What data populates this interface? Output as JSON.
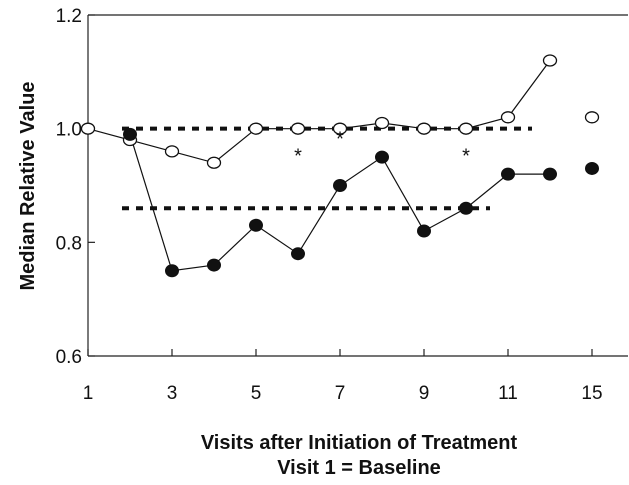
{
  "chart_data": {
    "type": "line",
    "title": "",
    "xlabel": "Visits after Initiation of Treatment",
    "xlabel_line2": "Visit 1 = Baseline",
    "ylabel": "Median Relative Value",
    "ylim": [
      0.6,
      1.2
    ],
    "yticks": [
      "0.6",
      "0.8",
      "1.0",
      "1.2"
    ],
    "xticks": [
      "1",
      "3",
      "5",
      "7",
      "9",
      "11",
      "15"
    ],
    "grid": false,
    "legend": "none",
    "series": [
      {
        "marker": "open-circle",
        "color": "#111111",
        "points": [
          {
            "visit": 1,
            "value": 1.0
          },
          {
            "visit": 2,
            "value": 0.98
          },
          {
            "visit": 3,
            "value": 0.96
          },
          {
            "visit": 4,
            "value": 0.94
          },
          {
            "visit": 5,
            "value": 1.0
          },
          {
            "visit": 6,
            "value": 1.0
          },
          {
            "visit": 7,
            "value": 1.0
          },
          {
            "visit": 8,
            "value": 1.01
          },
          {
            "visit": 9,
            "value": 1.0
          },
          {
            "visit": 10,
            "value": 1.0
          },
          {
            "visit": 11,
            "value": 1.02
          },
          {
            "visit": 12,
            "value": 1.12
          },
          {
            "visit": 15,
            "value": 1.02,
            "connected": false
          }
        ]
      },
      {
        "marker": "filled-circle",
        "color": "#111111",
        "points": [
          {
            "visit": 2,
            "value": 0.99
          },
          {
            "visit": 3,
            "value": 0.75
          },
          {
            "visit": 4,
            "value": 0.76
          },
          {
            "visit": 5,
            "value": 0.83
          },
          {
            "visit": 6,
            "value": 0.78
          },
          {
            "visit": 7,
            "value": 0.9
          },
          {
            "visit": 8,
            "value": 0.95
          },
          {
            "visit": 9,
            "value": 0.82
          },
          {
            "visit": 10,
            "value": 0.86
          },
          {
            "visit": 11,
            "value": 0.92
          },
          {
            "visit": 12,
            "value": 0.92
          },
          {
            "visit": 15,
            "value": 0.93,
            "connected": false
          }
        ]
      }
    ],
    "reference_lines": [
      {
        "style": "dashed",
        "value": 1.0,
        "from_visit": 2,
        "to_visit": 11
      },
      {
        "style": "dashed",
        "value": 0.86,
        "from_visit": 2,
        "to_visit": 10
      }
    ],
    "annotations": [
      {
        "text": "*",
        "visit": 6,
        "value": 0.965
      },
      {
        "text": "*",
        "visit": 7,
        "value": 0.995
      },
      {
        "text": "*",
        "visit": 10,
        "value": 0.965
      }
    ]
  }
}
